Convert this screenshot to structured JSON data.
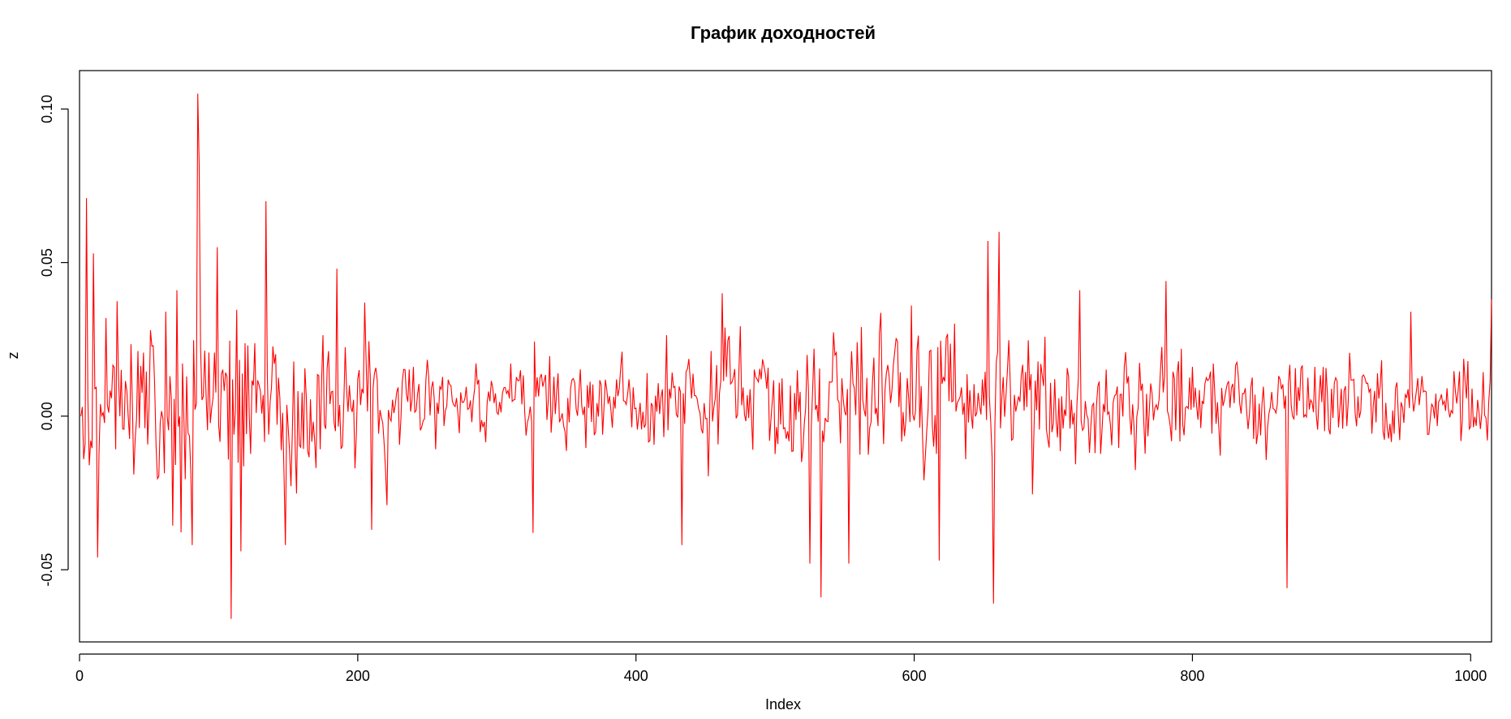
{
  "chart_data": {
    "type": "line",
    "title": "График доходностей",
    "xlabel": "Index",
    "ylabel": "z",
    "xlim": [
      0,
      1015
    ],
    "ylim": [
      -0.0735,
      0.1125
    ],
    "x_ticks": [
      0,
      200,
      400,
      600,
      800,
      1000
    ],
    "x_tick_labels": [
      "0",
      "200",
      "400",
      "600",
      "800",
      "1000"
    ],
    "y_ticks": [
      -0.05,
      0.0,
      0.05,
      0.1
    ],
    "y_tick_labels": [
      "-0.05",
      "0.00",
      "0.05",
      "0.10"
    ],
    "grid": false,
    "line_color": "#ff0000",
    "series": [
      {
        "n": 1015,
        "x_start": 1,
        "x_step": 1,
        "sample_values": [
          [
            1,
            0.0
          ],
          [
            3,
            -0.014
          ],
          [
            5,
            0.071
          ],
          [
            7,
            -0.016
          ],
          [
            10,
            0.053
          ],
          [
            13,
            -0.046
          ],
          [
            39,
            -0.019
          ],
          [
            70,
            0.041
          ],
          [
            81,
            -0.042
          ],
          [
            85,
            0.105
          ],
          [
            86,
            0.082
          ],
          [
            99,
            0.055
          ],
          [
            109,
            -0.066
          ],
          [
            116,
            -0.044
          ],
          [
            134,
            0.07
          ],
          [
            148,
            -0.042
          ],
          [
            185,
            0.048
          ],
          [
            205,
            0.037
          ],
          [
            210,
            -0.037
          ],
          [
            326,
            -0.038
          ],
          [
            408,
            0.014
          ],
          [
            433,
            -0.042
          ],
          [
            462,
            0.04
          ],
          [
            525,
            -0.048
          ],
          [
            533,
            -0.059
          ],
          [
            553,
            -0.048
          ],
          [
            598,
            0.036
          ],
          [
            618,
            -0.047
          ],
          [
            653,
            0.057
          ],
          [
            657,
            -0.061
          ],
          [
            661,
            0.06
          ],
          [
            719,
            0.041
          ],
          [
            781,
            0.044
          ],
          [
            863,
            0.012
          ],
          [
            868,
            -0.056
          ],
          [
            957,
            0.034
          ],
          [
            1015,
            0.038
          ]
        ]
      }
    ]
  }
}
